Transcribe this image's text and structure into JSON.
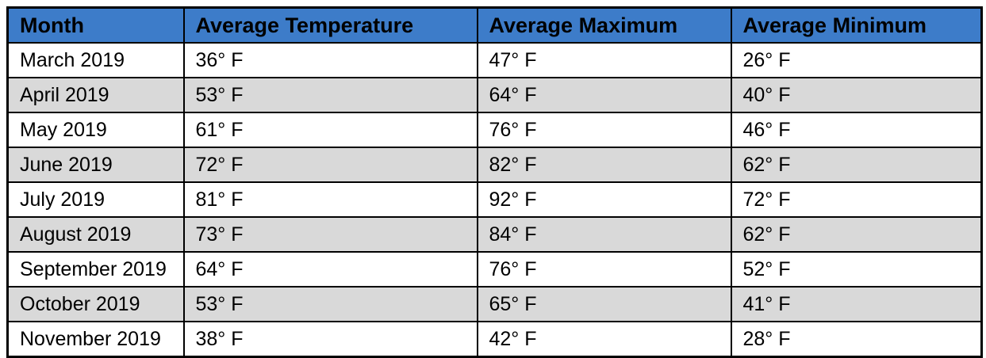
{
  "table": {
    "columns": [
      "Month",
      "Average Temperature",
      "Average Maximum",
      "Average Minimum"
    ],
    "rows": [
      [
        "March 2019",
        "36° F",
        "47° F",
        "26° F"
      ],
      [
        "April 2019",
        "53° F",
        "64° F",
        "40° F"
      ],
      [
        "May 2019",
        "61° F",
        "76° F",
        "46° F"
      ],
      [
        "June 2019",
        "72° F",
        "82° F",
        "62° F"
      ],
      [
        "July 2019",
        "81° F",
        "92° F",
        "72° F"
      ],
      [
        "August 2019",
        "73° F",
        "84° F",
        "62° F"
      ],
      [
        "September 2019",
        "64° F",
        "76° F",
        "52° F"
      ],
      [
        "October 2019",
        "53° F",
        "65° F",
        "41° F"
      ],
      [
        "November 2019",
        "38° F",
        "42° F",
        "28° F"
      ]
    ]
  },
  "colors": {
    "header_bg": "#3D7CC9",
    "alt_row_bg": "#D9D9D9",
    "border": "#000000",
    "text": "#000000"
  },
  "chart_data": {
    "type": "table",
    "columns": [
      "Month",
      "Average Temperature",
      "Average Maximum",
      "Average Minimum"
    ],
    "months": [
      "March 2019",
      "April 2019",
      "May 2019",
      "June 2019",
      "July 2019",
      "August 2019",
      "September 2019",
      "October 2019",
      "November 2019"
    ],
    "series": [
      {
        "name": "Average Temperature (°F)",
        "values": [
          36,
          53,
          61,
          72,
          81,
          73,
          64,
          53,
          38
        ]
      },
      {
        "name": "Average Maximum (°F)",
        "values": [
          47,
          64,
          76,
          82,
          92,
          84,
          76,
          65,
          42
        ]
      },
      {
        "name": "Average Minimum (°F)",
        "values": [
          26,
          40,
          46,
          62,
          72,
          62,
          52,
          41,
          28
        ]
      }
    ]
  }
}
